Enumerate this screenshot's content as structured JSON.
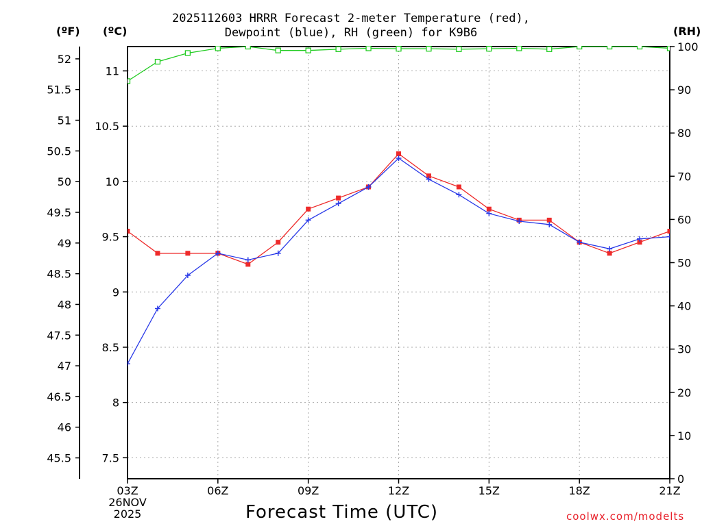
{
  "chart_data": {
    "type": "line",
    "title_lines": [
      "2025112603 HRRR Forecast 2-meter Temperature (red),",
      "Dewpoint (blue), RH (green) for K9B6"
    ],
    "units": {
      "fahrenheit": "(ºF)",
      "celsius": "(ºC)",
      "rh": "(RH)"
    },
    "xlabel": "Forecast Time (UTC)",
    "credit": "coolwx.com/modelts",
    "x_ticks": [
      {
        "hour": 0,
        "label": "03Z",
        "sublabels": [
          "26NOV",
          "2025"
        ]
      },
      {
        "hour": 3,
        "label": "06Z",
        "sublabels": []
      },
      {
        "hour": 6,
        "label": "09Z",
        "sublabels": []
      },
      {
        "hour": 9,
        "label": "12Z",
        "sublabels": []
      },
      {
        "hour": 12,
        "label": "15Z",
        "sublabels": []
      },
      {
        "hour": 15,
        "label": "18Z",
        "sublabels": []
      },
      {
        "hour": 18,
        "label": "21Z",
        "sublabels": []
      }
    ],
    "xlim": [
      0,
      18
    ],
    "celsius_axis": {
      "ylim": [
        7.31,
        11.22
      ],
      "ticks": [
        "7.5",
        "8",
        "8.5",
        "9",
        "9.5",
        "10",
        "10.5",
        "11"
      ]
    },
    "fahrenheit_axis": {
      "ylim": [
        45.16,
        52.2
      ],
      "ticks": [
        "45.5",
        "46",
        "46.5",
        "47",
        "47.5",
        "48",
        "48.5",
        "49",
        "49.5",
        "50",
        "50.5",
        "51",
        "51.5",
        "52"
      ]
    },
    "rh_axis": {
      "ylim": [
        0,
        100
      ],
      "ticks": [
        "0",
        "10",
        "20",
        "30",
        "40",
        "50",
        "60",
        "70",
        "80",
        "90",
        "100"
      ]
    },
    "grid": true,
    "series": [
      {
        "name": "2-meter Temperature",
        "axis": "celsius",
        "color": "#ee2a2a",
        "marker": "filled-square",
        "x": [
          0,
          1,
          2,
          3,
          4,
          5,
          6,
          7,
          8,
          9,
          10,
          11,
          12,
          13,
          14,
          15,
          16,
          17,
          18
        ],
        "values": [
          9.55,
          9.35,
          9.35,
          9.35,
          9.25,
          9.45,
          9.75,
          9.85,
          9.95,
          10.25,
          10.05,
          9.95,
          9.75,
          9.65,
          9.65,
          9.45,
          9.35,
          9.45,
          9.55
        ]
      },
      {
        "name": "Dewpoint",
        "axis": "celsius",
        "color": "#2a3ae8",
        "marker": "plus",
        "x": [
          0,
          1,
          2,
          3,
          4,
          5,
          6,
          7,
          8,
          9,
          10,
          11,
          12,
          13,
          14,
          15,
          16,
          17,
          18
        ],
        "values": [
          8.35,
          8.85,
          9.15,
          9.35,
          9.29,
          9.35,
          9.65,
          9.8,
          9.95,
          10.21,
          10.02,
          9.88,
          9.71,
          9.64,
          9.61,
          9.45,
          9.39,
          9.48,
          9.5
        ]
      },
      {
        "name": "RH",
        "axis": "rh",
        "color": "#22cc22",
        "marker": "open-square",
        "x": [
          0,
          1,
          2,
          3,
          4,
          5,
          6,
          7,
          8,
          9,
          10,
          11,
          12,
          13,
          14,
          15,
          16,
          17,
          18
        ],
        "values": [
          92,
          96.5,
          98.5,
          99.6,
          100,
          99.1,
          99.1,
          99.4,
          99.6,
          99.5,
          99.5,
          99.4,
          99.5,
          99.6,
          99.4,
          100,
          100,
          100,
          99.6
        ]
      }
    ]
  }
}
